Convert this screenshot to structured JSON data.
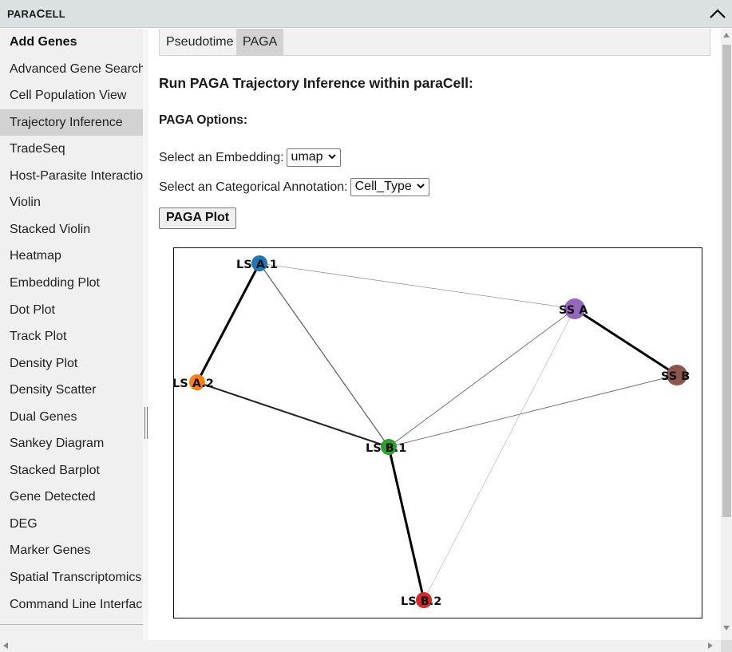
{
  "app": {
    "brand_prefix": "PARA",
    "brand_first": "C",
    "brand_rest": "ELL",
    "brand_icon": "chevron-up-icon"
  },
  "sidebar": {
    "items": [
      {
        "label": "Add Genes",
        "heading": true
      },
      {
        "label": "Advanced Gene Search"
      },
      {
        "label": "Cell Population View"
      },
      {
        "label": "Trajectory Inference",
        "active": true
      },
      {
        "label": "TradeSeq"
      },
      {
        "label": "Host-Parasite Interactions"
      },
      {
        "label": "Violin"
      },
      {
        "label": "Stacked Violin"
      },
      {
        "label": "Heatmap"
      },
      {
        "label": "Embedding Plot"
      },
      {
        "label": "Dot Plot"
      },
      {
        "label": "Track Plot"
      },
      {
        "label": "Density Plot"
      },
      {
        "label": "Density Scatter"
      },
      {
        "label": "Dual Genes"
      },
      {
        "label": "Sankey Diagram"
      },
      {
        "label": "Stacked Barplot"
      },
      {
        "label": "Gene Detected"
      },
      {
        "label": "DEG"
      },
      {
        "label": "Marker Genes"
      },
      {
        "label": "Spatial Transcriptomics"
      },
      {
        "label": "Command Line Interface"
      }
    ]
  },
  "main": {
    "tabs": [
      {
        "label": "Pseudotime"
      },
      {
        "label": "PAGA",
        "active": true
      }
    ],
    "title": "Run PAGA Trajectory Inference within paraCell:",
    "options_title": "PAGA Options:",
    "embedding": {
      "label": "Select an Embedding:",
      "value": "umap"
    },
    "annotation": {
      "label": "Select an Categorical Annotation:",
      "value": "Cell_Type"
    },
    "plot_button": "PAGA Plot"
  },
  "graph": {
    "nodes": [
      {
        "id": "LS A.1",
        "color": "#1f77b4"
      },
      {
        "id": "LS A.2",
        "color": "#ff7f0e"
      },
      {
        "id": "LS B.1",
        "color": "#2ca02c"
      },
      {
        "id": "LS B.2",
        "color": "#d62728"
      },
      {
        "id": "SS A",
        "color": "#9467bd"
      },
      {
        "id": "SS B",
        "color": "#8c564b"
      }
    ],
    "edges": [
      {
        "source": "LS A.1",
        "target": "LS A.2",
        "weight": "strong"
      },
      {
        "source": "LS A.1",
        "target": "LS B.1",
        "weight": "medium"
      },
      {
        "source": "LS A.1",
        "target": "SS A",
        "weight": "light"
      },
      {
        "source": "LS A.2",
        "target": "LS B.1",
        "weight": "medium-strong"
      },
      {
        "source": "LS B.1",
        "target": "LS B.2",
        "weight": "strong"
      },
      {
        "source": "LS B.1",
        "target": "SS A",
        "weight": "medium-light"
      },
      {
        "source": "LS B.1",
        "target": "SS B",
        "weight": "medium-light"
      },
      {
        "source": "SS A",
        "target": "SS B",
        "weight": "strong"
      },
      {
        "source": "SS A",
        "target": "LS B.2",
        "weight": "very-light"
      }
    ]
  }
}
